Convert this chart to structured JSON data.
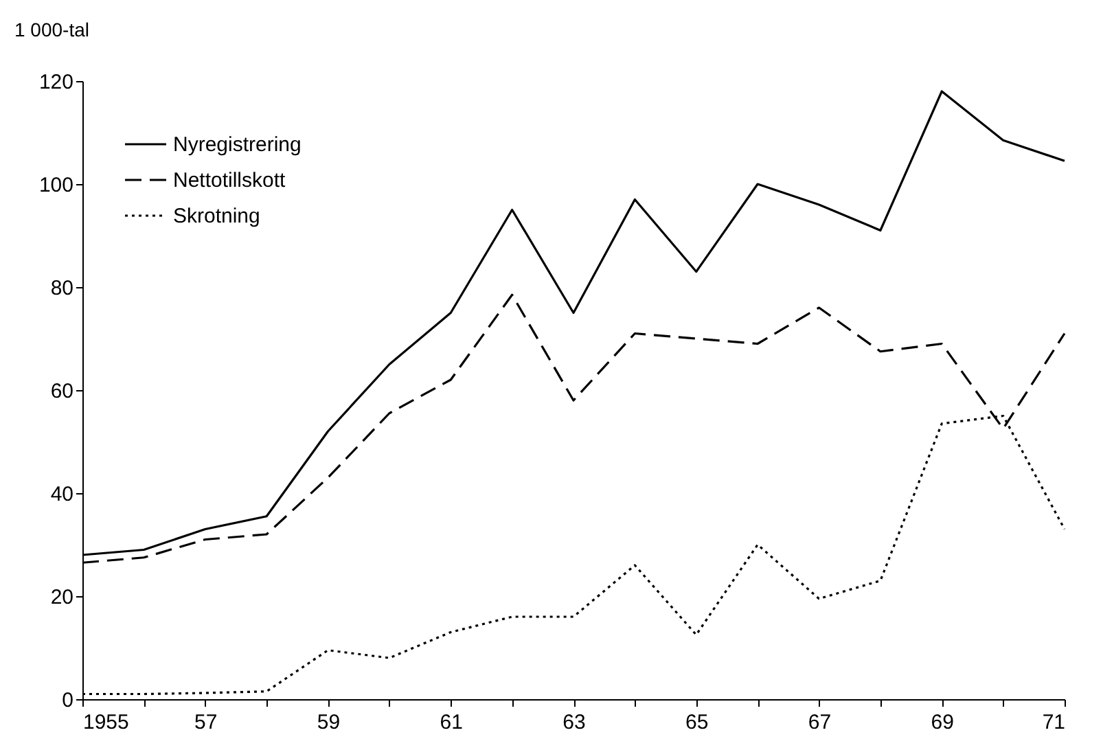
{
  "chart_data": {
    "type": "line",
    "ylabel": "1 000-tal",
    "x": [
      1955,
      1956,
      1957,
      1958,
      1959,
      1960,
      1961,
      1962,
      1963,
      1964,
      1965,
      1966,
      1967,
      1968,
      1969,
      1970,
      1971
    ],
    "series": [
      {
        "name": "Nyregistrering",
        "color": "#000000",
        "line_style": "solid",
        "values": [
          28,
          29,
          33,
          35.5,
          52,
          65,
          75,
          95,
          75,
          97,
          83,
          100,
          96,
          91,
          118,
          108.5,
          104.5
        ]
      },
      {
        "name": "Nettotillskott",
        "color": "#000000",
        "line_style": "dashed",
        "values": [
          26.5,
          27.5,
          31,
          32,
          43,
          55.5,
          62,
          78.5,
          58,
          71,
          70,
          69,
          76,
          67.5,
          69,
          52.5,
          71
        ]
      },
      {
        "name": "Skrotning",
        "color": "#000000",
        "line_style": "dotted",
        "values": [
          1,
          1,
          1.2,
          1.5,
          9.5,
          8,
          13,
          16,
          16,
          26,
          12.5,
          30,
          19.5,
          23,
          53.5,
          55,
          33
        ]
      }
    ],
    "xlim": [
      1955,
      1971
    ],
    "xticks": [
      1955,
      {
        "value": 1956,
        "label": null
      },
      {
        "value": 1957,
        "label": "57"
      },
      {
        "value": 1958,
        "label": null
      },
      {
        "value": 1959,
        "label": "59"
      },
      {
        "value": 1960,
        "label": null
      },
      {
        "value": 1961,
        "label": "61"
      },
      {
        "value": 1962,
        "label": null
      },
      {
        "value": 1963,
        "label": "63"
      },
      {
        "value": 1964,
        "label": null
      },
      {
        "value": 1965,
        "label": "65"
      },
      {
        "value": 1966,
        "label": null
      },
      {
        "value": 1967,
        "label": "67"
      },
      {
        "value": 1968,
        "label": null
      },
      {
        "value": 1969,
        "label": "69"
      },
      {
        "value": 1970,
        "label": null
      },
      {
        "value": 1971,
        "label": "71"
      }
    ],
    "ylim": [
      0,
      120
    ],
    "yticks": [
      0,
      20,
      40,
      60,
      80,
      100,
      120
    ],
    "grid": false,
    "legend": "top left",
    "marker": "none"
  }
}
